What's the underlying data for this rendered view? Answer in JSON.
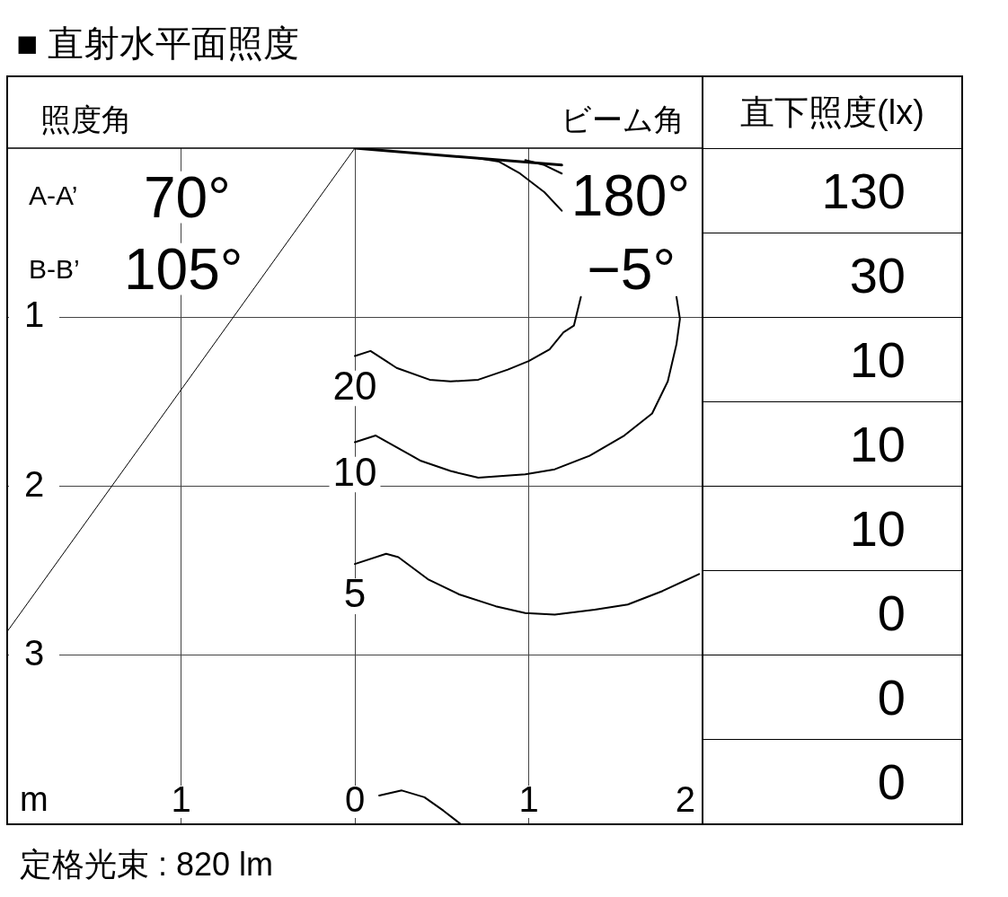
{
  "chart_data": [
    {
      "type": "line",
      "title": "■ 直射水平面照度",
      "xlabel": "m",
      "annotations": [
        "照度角",
        "ビーム角",
        "A-A’",
        "70°",
        "B-B’",
        "105°",
        "180°",
        "−5°",
        "定格光束 : 820 lm"
      ],
      "xlim": [
        -2,
        2
      ],
      "xticks": [
        {
          "value": -1,
          "label": "1"
        },
        0,
        1,
        2
      ],
      "ylim": [
        4,
        0
      ],
      "yticks": [
        1,
        2,
        3
      ],
      "grid": true,
      "marker": "none",
      "series": [
        {
          "color": "#000000",
          "x": [
            0,
            -2
          ],
          "values": [
            0,
            2.86
          ]
        },
        {
          "color": "#000000",
          "x": [
            0,
            1.19
          ],
          "values": [
            0,
            0.1
          ]
        },
        {
          "name": "20",
          "color": "#000000",
          "x": [
            0,
            0.09,
            0.18,
            0.24,
            0.43,
            0.55,
            0.71,
            0.88,
            1.0,
            1.12,
            1.2,
            1.26,
            1.3,
            1.28,
            1.19,
            1.09,
            0.95,
            0.83,
            0.71
          ],
          "values": [
            1.23,
            1.2,
            1.26,
            1.3,
            1.37,
            1.38,
            1.37,
            1.31,
            1.26,
            1.19,
            1.09,
            1.05,
            0.88,
            null,
            0.37,
            0.26,
            0.15,
            0.08,
            0.06
          ]
        },
        {
          "name": "10",
          "color": "#000000",
          "x": [
            0,
            0.12,
            0.24,
            0.38,
            0.55,
            0.71,
            0.98,
            1.15,
            1.35,
            1.55,
            1.71,
            1.8,
            1.85,
            1.87,
            1.85,
            1.6,
            1.19,
            1.09,
            0.98
          ],
          "values": [
            1.74,
            1.7,
            1.77,
            1.85,
            1.91,
            1.95,
            1.93,
            1.9,
            1.82,
            1.7,
            1.57,
            1.38,
            1.16,
            1.01,
            0.88,
            null,
            0.15,
            0.1,
            0.07
          ]
        },
        {
          "name": "5",
          "color": "#000000",
          "x": [
            0,
            0.18,
            0.25,
            0.42,
            0.6,
            0.81,
            0.98,
            1.15,
            1.38,
            1.57,
            1.77,
            1.98
          ],
          "values": [
            2.46,
            2.4,
            2.42,
            2.55,
            2.64,
            2.71,
            2.75,
            2.76,
            2.73,
            2.7,
            2.62,
            2.52
          ]
        },
        {
          "color": "#000000",
          "x": [
            0.14,
            0.27,
            0.4,
            0.51,
            0.61
          ],
          "values": [
            3.83,
            3.8,
            3.84,
            3.92,
            4.0
          ]
        }
      ]
    },
    {
      "type": "other",
      "title": "直下照度(lx)",
      "values": [
        130,
        30,
        10,
        10,
        10,
        0,
        0,
        0
      ],
      "data_labels": true
    }
  ]
}
